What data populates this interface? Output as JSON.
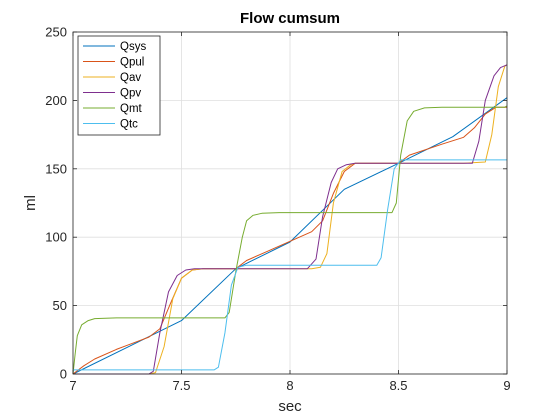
{
  "chart_data": {
    "type": "line",
    "title": "Flow cumsum",
    "xlabel": "sec",
    "ylabel": "ml",
    "xlim": [
      7,
      9
    ],
    "ylim": [
      0,
      250
    ],
    "xticks": [
      7,
      7.5,
      8,
      8.5,
      9
    ],
    "yticks": [
      0,
      50,
      100,
      150,
      200,
      250
    ],
    "xtick_labels": [
      "7",
      "7.5",
      "8",
      "8.5",
      "9"
    ],
    "ytick_labels": [
      "0",
      "50",
      "100",
      "150",
      "200",
      "250"
    ],
    "grid": true,
    "legend_position": "top-left",
    "series": [
      {
        "name": "Qsys",
        "color": "#0072BD",
        "points": [
          [
            7,
            0
          ],
          [
            7.25,
            19.5
          ],
          [
            7.5,
            39
          ],
          [
            7.75,
            77
          ],
          [
            8,
            96.5
          ],
          [
            8.25,
            135
          ],
          [
            8.5,
            154
          ],
          [
            8.75,
            173.5
          ],
          [
            9,
            202
          ]
        ]
      },
      {
        "name": "Qpul",
        "color": "#D95319",
        "points": [
          [
            7,
            0
          ],
          [
            7.05,
            6
          ],
          [
            7.1,
            11
          ],
          [
            7.2,
            18
          ],
          [
            7.3,
            24
          ],
          [
            7.35,
            27
          ],
          [
            7.4,
            33
          ],
          [
            7.45,
            52
          ],
          [
            7.5,
            70
          ],
          [
            7.55,
            76
          ],
          [
            7.6,
            77
          ],
          [
            7.7,
            77
          ],
          [
            7.75,
            77
          ],
          [
            7.8,
            83
          ],
          [
            7.9,
            90
          ],
          [
            8,
            97
          ],
          [
            8.1,
            104
          ],
          [
            8.15,
            112
          ],
          [
            8.2,
            132
          ],
          [
            8.25,
            148
          ],
          [
            8.3,
            154
          ],
          [
            8.4,
            154
          ],
          [
            8.5,
            154
          ],
          [
            8.55,
            160
          ],
          [
            8.7,
            168
          ],
          [
            8.8,
            173
          ],
          [
            8.85,
            180
          ],
          [
            8.9,
            190
          ],
          [
            8.95,
            195
          ],
          [
            9,
            195
          ]
        ]
      },
      {
        "name": "Qav",
        "color": "#EDB120",
        "points": [
          [
            7,
            0
          ],
          [
            7.35,
            0
          ],
          [
            7.38,
            1
          ],
          [
            7.42,
            20
          ],
          [
            7.46,
            55
          ],
          [
            7.5,
            70
          ],
          [
            7.55,
            76
          ],
          [
            7.6,
            77
          ],
          [
            7.74,
            77
          ],
          [
            7.76,
            77
          ],
          [
            8.1,
            77
          ],
          [
            8.14,
            78
          ],
          [
            8.17,
            88
          ],
          [
            8.2,
            125
          ],
          [
            8.24,
            148
          ],
          [
            8.28,
            153
          ],
          [
            8.3,
            154
          ],
          [
            8.5,
            154
          ],
          [
            8.8,
            154
          ],
          [
            8.9,
            155
          ],
          [
            8.93,
            175
          ],
          [
            8.96,
            210
          ],
          [
            8.99,
            225
          ],
          [
            9,
            226
          ]
        ]
      },
      {
        "name": "Qpv",
        "color": "#7E2F8E",
        "points": [
          [
            7,
            0
          ],
          [
            7.35,
            0
          ],
          [
            7.37,
            2
          ],
          [
            7.4,
            30
          ],
          [
            7.44,
            60
          ],
          [
            7.48,
            72
          ],
          [
            7.52,
            76
          ],
          [
            7.56,
            77
          ],
          [
            7.74,
            77
          ],
          [
            7.8,
            77
          ],
          [
            8.08,
            77
          ],
          [
            8.12,
            84
          ],
          [
            8.15,
            115
          ],
          [
            8.19,
            140
          ],
          [
            8.22,
            150
          ],
          [
            8.26,
            153
          ],
          [
            8.3,
            154
          ],
          [
            8.5,
            154
          ],
          [
            8.84,
            154
          ],
          [
            8.87,
            170
          ],
          [
            8.9,
            200
          ],
          [
            8.94,
            218
          ],
          [
            8.97,
            224
          ],
          [
            9,
            226
          ]
        ]
      },
      {
        "name": "Qmt",
        "color": "#77AC30",
        "points": [
          [
            7,
            0
          ],
          [
            7.01,
            15
          ],
          [
            7.02,
            28
          ],
          [
            7.04,
            36
          ],
          [
            7.07,
            39
          ],
          [
            7.1,
            40.5
          ],
          [
            7.2,
            41
          ],
          [
            7.35,
            41
          ],
          [
            7.5,
            41
          ],
          [
            7.7,
            41
          ],
          [
            7.72,
            45
          ],
          [
            7.75,
            75
          ],
          [
            7.78,
            100
          ],
          [
            7.8,
            112
          ],
          [
            7.83,
            116
          ],
          [
            7.87,
            117.5
          ],
          [
            7.95,
            118
          ],
          [
            8.1,
            118
          ],
          [
            8.47,
            118
          ],
          [
            8.49,
            125
          ],
          [
            8.51,
            160
          ],
          [
            8.54,
            185
          ],
          [
            8.57,
            192
          ],
          [
            8.62,
            194.5
          ],
          [
            8.7,
            195
          ],
          [
            8.99,
            195
          ],
          [
            9,
            196
          ]
        ]
      },
      {
        "name": "Qtc",
        "color": "#4DBEEE",
        "points": [
          [
            7,
            3
          ],
          [
            7.2,
            3
          ],
          [
            7.4,
            3
          ],
          [
            7.65,
            3
          ],
          [
            7.67,
            5
          ],
          [
            7.7,
            30
          ],
          [
            7.73,
            65
          ],
          [
            7.76,
            78
          ],
          [
            7.8,
            79.5
          ],
          [
            8.2,
            79.5
          ],
          [
            8.4,
            79.5
          ],
          [
            8.42,
            85
          ],
          [
            8.45,
            120
          ],
          [
            8.48,
            150
          ],
          [
            8.51,
            156.5
          ],
          [
            8.6,
            156.5
          ],
          [
            8.8,
            156.5
          ],
          [
            9,
            156.5
          ]
        ]
      }
    ]
  }
}
